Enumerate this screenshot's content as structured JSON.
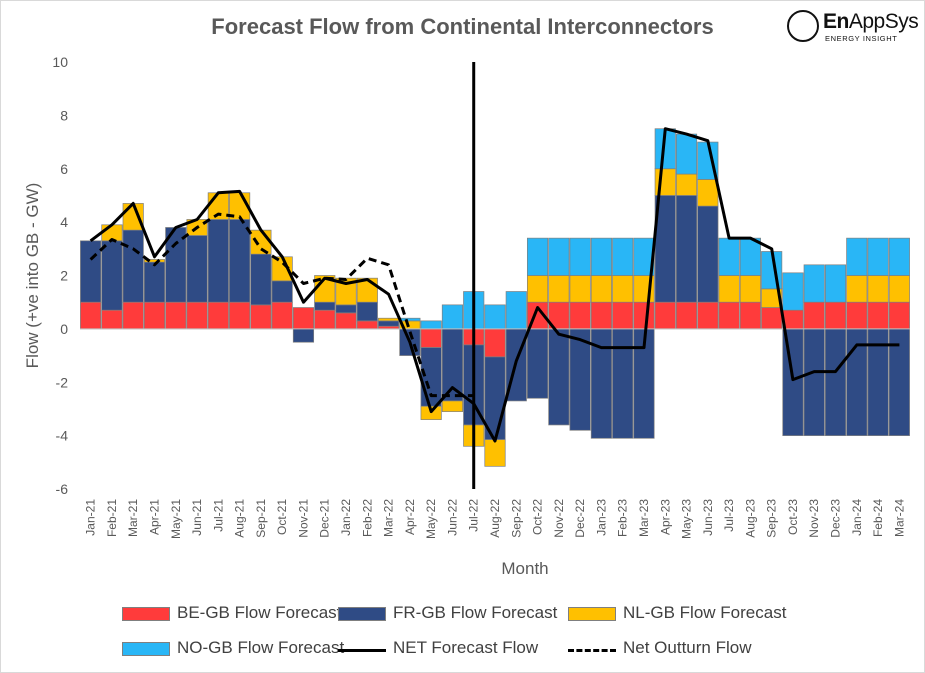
{
  "title": "Forecast Flow from Continental Interconnectors",
  "logo": {
    "name_bold": "En",
    "name_rest": "AppSys",
    "tagline": "ENERGY INSIGHT"
  },
  "legend": {
    "be": "BE-GB Flow Forecast",
    "fr": "FR-GB Flow Forecast",
    "nl": "NL-GB Flow Forecast",
    "no": "NO-GB Flow Forecast",
    "net": "NET Forecast Flow",
    "outturn": "Net Outturn Flow"
  },
  "colors": {
    "be": "#ff3b3b",
    "fr": "#2f4b85",
    "nl": "#ffc000",
    "no": "#29b6f6",
    "net": "#000000",
    "outturn": "#000000",
    "edge": "#7f7f7f"
  },
  "chart_data": {
    "type": "bar",
    "stacked": true,
    "title": "Forecast Flow from Continental Interconnectors",
    "xlabel": "Month",
    "ylabel": "Flow (+ve into GB - GW)",
    "ylim": [
      -6,
      10
    ],
    "yticks": [
      -6,
      -4,
      -2,
      0,
      2,
      4,
      6,
      8,
      10
    ],
    "grid": false,
    "legend_position": "bottom",
    "vertical_marker_after": "Jul-22",
    "categories": [
      "Jan-21",
      "Feb-21",
      "Mar-21",
      "Apr-21",
      "May-21",
      "Jun-21",
      "Jul-21",
      "Aug-21",
      "Sep-21",
      "Oct-21",
      "Nov-21",
      "Dec-21",
      "Jan-22",
      "Feb-22",
      "Mar-22",
      "Apr-22",
      "May-22",
      "Jun-22",
      "Jul-22",
      "Aug-22",
      "Sep-22",
      "Oct-22",
      "Nov-22",
      "Dec-22",
      "Jan-23",
      "Feb-23",
      "Mar-23",
      "Apr-23",
      "May-23",
      "Jun-23",
      "Jul-23",
      "Aug-23",
      "Sep-23",
      "Oct-23",
      "Nov-23",
      "Dec-23",
      "Jan-24",
      "Feb-24",
      "Mar-24"
    ],
    "series": [
      {
        "name": "BE-GB Flow Forecast",
        "type": "bar",
        "values": [
          1.0,
          0.7,
          1.0,
          1.0,
          1.0,
          1.0,
          1.0,
          1.0,
          0.9,
          1.0,
          0.8,
          0.7,
          0.6,
          0.3,
          0.1,
          0.0,
          -0.7,
          0.0,
          -0.6,
          -1.05,
          0.0,
          1.0,
          1.0,
          1.0,
          1.0,
          1.0,
          1.0,
          1.0,
          1.0,
          1.0,
          1.0,
          1.0,
          0.8,
          0.7,
          1.0,
          1.0,
          1.0,
          1.0,
          1.0
        ]
      },
      {
        "name": "FR-GB Flow Forecast",
        "type": "bar",
        "values": [
          2.3,
          2.6,
          2.7,
          1.5,
          2.8,
          2.5,
          3.1,
          3.1,
          1.9,
          0.8,
          -0.5,
          0.3,
          0.3,
          0.7,
          0.2,
          -1.0,
          -2.2,
          -2.7,
          -3.0,
          -3.1,
          -2.7,
          -2.6,
          -3.6,
          -3.8,
          -4.1,
          -4.1,
          -4.1,
          4.0,
          4.0,
          3.6,
          0.0,
          0.0,
          0.0,
          -4.0,
          -4.0,
          -4.0,
          -4.0,
          -4.0,
          -4.0
        ]
      },
      {
        "name": "NL-GB Flow Forecast",
        "type": "bar",
        "values": [
          0.0,
          0.6,
          1.0,
          0.1,
          0.0,
          0.6,
          1.0,
          1.0,
          0.9,
          0.9,
          0.0,
          1.0,
          1.0,
          0.9,
          0.1,
          0.3,
          -0.5,
          -0.4,
          -0.8,
          -1.0,
          0.0,
          1.0,
          1.0,
          1.0,
          1.0,
          1.0,
          1.0,
          1.0,
          0.8,
          1.0,
          1.0,
          1.0,
          0.7,
          0.0,
          0.0,
          0.0,
          1.0,
          1.0,
          1.0
        ]
      },
      {
        "name": "NO-GB Flow Forecast",
        "type": "bar",
        "values": [
          0.0,
          0.0,
          0.0,
          0.0,
          0.0,
          0.0,
          0.0,
          0.0,
          0.0,
          0.0,
          0.0,
          0.0,
          0.0,
          0.0,
          0.0,
          0.1,
          0.3,
          0.9,
          1.4,
          0.9,
          1.4,
          1.4,
          1.4,
          1.4,
          1.4,
          1.4,
          1.4,
          1.5,
          1.5,
          1.4,
          1.4,
          1.4,
          1.4,
          1.4,
          1.4,
          1.4,
          1.4,
          1.4,
          1.4
        ]
      },
      {
        "name": "NET Forecast Flow",
        "type": "line",
        "values": [
          3.3,
          3.9,
          4.7,
          2.7,
          3.8,
          4.1,
          5.1,
          5.15,
          3.7,
          2.7,
          1.0,
          1.9,
          1.7,
          1.85,
          1.3,
          -0.5,
          -3.1,
          -2.2,
          -2.8,
          -4.2,
          -1.2,
          0.8,
          -0.2,
          -0.4,
          -0.7,
          -0.7,
          -0.7,
          7.5,
          7.3,
          7.05,
          3.4,
          3.4,
          3.0,
          -1.9,
          -1.6,
          -1.6,
          -0.6,
          -0.6,
          -0.6
        ]
      },
      {
        "name": "Net Outturn Flow",
        "type": "line",
        "dashed": true,
        "values": [
          2.6,
          3.35,
          3.0,
          2.4,
          3.2,
          3.8,
          4.3,
          4.2,
          3.0,
          2.5,
          1.7,
          1.9,
          1.85,
          2.65,
          2.4,
          -0.1,
          -2.5,
          -2.5,
          -2.5,
          null,
          null,
          null,
          null,
          null,
          null,
          null,
          null,
          null,
          null,
          null,
          null,
          null,
          null,
          null,
          null,
          null,
          null,
          null,
          null
        ]
      }
    ]
  }
}
